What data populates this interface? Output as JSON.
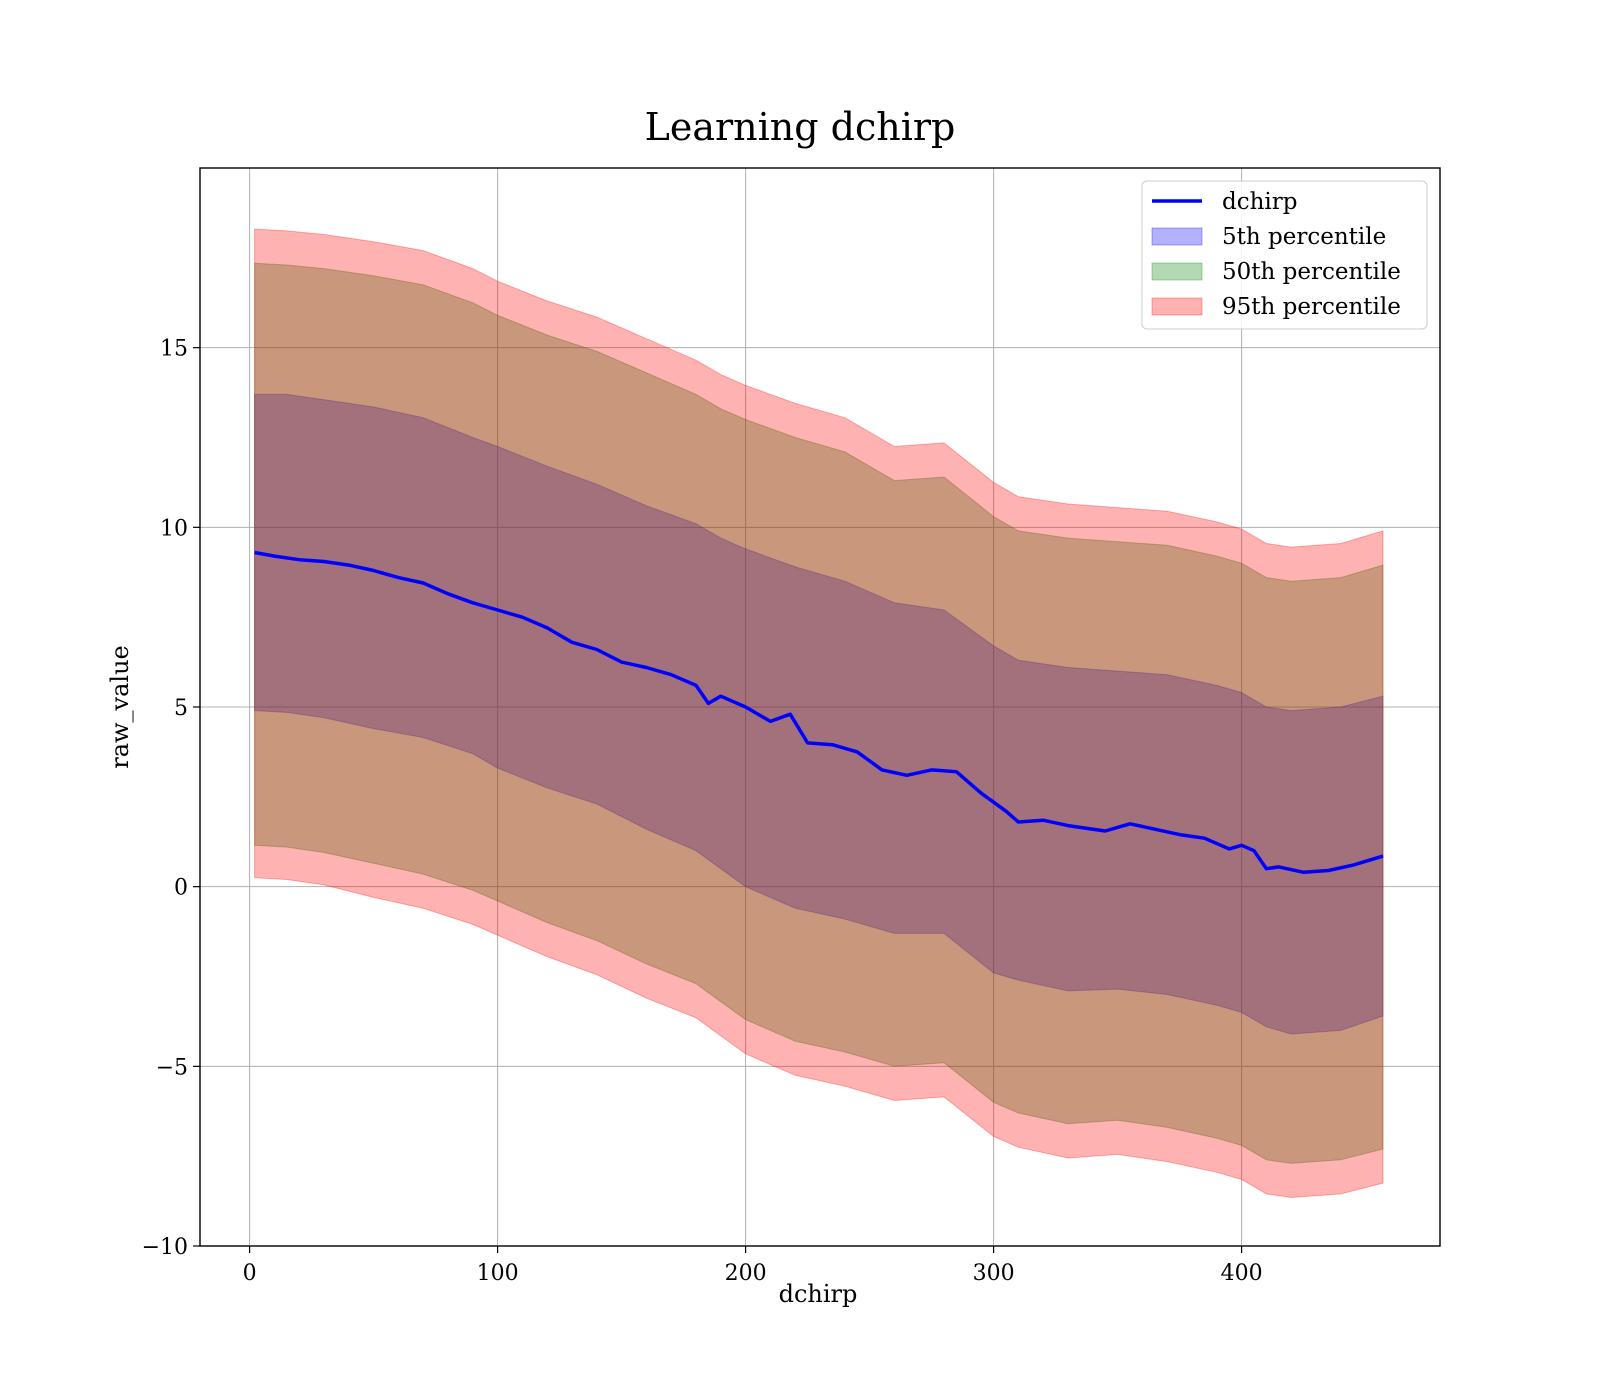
{
  "chart_data": {
    "type": "area",
    "title": "Learning dchirp",
    "xlabel": "dchirp",
    "ylabel": "raw_value",
    "xlim": [
      -20,
      480
    ],
    "ylim": [
      -10,
      20
    ],
    "x_ticks": [
      0,
      100,
      200,
      300,
      400
    ],
    "y_ticks": [
      -10,
      -5,
      0,
      5,
      10,
      15
    ],
    "y_tick_labels": [
      "−10",
      "−5",
      "0",
      "5",
      "10",
      "15"
    ],
    "grid": true,
    "legend_position": "top-right",
    "series": [
      {
        "name": "dchirp",
        "kind": "line",
        "color": "#0000ff",
        "x": [
          2,
          10,
          20,
          30,
          40,
          50,
          60,
          70,
          80,
          90,
          100,
          110,
          120,
          130,
          140,
          150,
          160,
          170,
          180,
          185,
          190,
          200,
          210,
          218,
          225,
          235,
          245,
          255,
          265,
          275,
          285,
          295,
          305,
          310,
          320,
          330,
          345,
          355,
          365,
          375,
          385,
          395,
          400,
          405,
          410,
          415,
          425,
          435,
          445,
          457
        ],
        "y": [
          9.3,
          9.2,
          9.1,
          9.05,
          8.95,
          8.8,
          8.6,
          8.45,
          8.15,
          7.9,
          7.7,
          7.5,
          7.2,
          6.8,
          6.6,
          6.25,
          6.1,
          5.9,
          5.6,
          5.1,
          5.3,
          5.0,
          4.6,
          4.8,
          4.0,
          3.95,
          3.75,
          3.25,
          3.1,
          3.25,
          3.2,
          2.6,
          2.1,
          1.8,
          1.85,
          1.7,
          1.55,
          1.75,
          1.6,
          1.45,
          1.35,
          1.05,
          1.15,
          1.0,
          0.5,
          0.55,
          0.4,
          0.45,
          0.6,
          0.85
        ]
      },
      {
        "name": "5th percentile",
        "kind": "band",
        "color": "#0000ff",
        "x": [
          2,
          15,
          30,
          50,
          70,
          90,
          100,
          120,
          140,
          160,
          180,
          190,
          200,
          220,
          240,
          260,
          280,
          300,
          310,
          330,
          350,
          370,
          390,
          400,
          410,
          420,
          440,
          457
        ],
        "upper": [
          13.7,
          13.7,
          13.55,
          13.35,
          13.05,
          12.5,
          12.25,
          11.7,
          11.2,
          10.6,
          10.1,
          9.7,
          9.4,
          8.9,
          8.5,
          7.9,
          7.7,
          6.7,
          6.3,
          6.1,
          6.0,
          5.9,
          5.6,
          5.4,
          5.0,
          4.9,
          5.0,
          5.3
        ],
        "lower": [
          4.9,
          4.85,
          4.7,
          4.4,
          4.15,
          3.7,
          3.3,
          2.75,
          2.3,
          1.6,
          1.0,
          0.5,
          0.0,
          -0.6,
          -0.9,
          -1.3,
          -1.3,
          -2.4,
          -2.6,
          -2.9,
          -2.85,
          -3.0,
          -3.3,
          -3.5,
          -3.9,
          -4.1,
          -4.0,
          -3.6
        ]
      },
      {
        "name": "50th percentile",
        "kind": "band",
        "color": "#008000",
        "x": [
          2,
          15,
          30,
          50,
          70,
          90,
          100,
          120,
          140,
          160,
          180,
          190,
          200,
          220,
          240,
          260,
          280,
          300,
          310,
          330,
          350,
          370,
          390,
          400,
          410,
          420,
          440,
          457
        ],
        "upper": [
          17.35,
          17.3,
          17.2,
          17.0,
          16.75,
          16.25,
          15.9,
          15.35,
          14.9,
          14.3,
          13.7,
          13.3,
          13.0,
          12.5,
          12.1,
          11.3,
          11.4,
          10.3,
          9.9,
          9.7,
          9.6,
          9.5,
          9.2,
          9.0,
          8.6,
          8.5,
          8.6,
          8.95
        ],
        "lower": [
          1.15,
          1.1,
          0.95,
          0.65,
          0.35,
          -0.1,
          -0.4,
          -1.0,
          -1.5,
          -2.15,
          -2.7,
          -3.2,
          -3.7,
          -4.3,
          -4.6,
          -5.0,
          -4.9,
          -6.0,
          -6.3,
          -6.6,
          -6.5,
          -6.7,
          -7.0,
          -7.2,
          -7.6,
          -7.7,
          -7.6,
          -7.3
        ]
      },
      {
        "name": "95th percentile",
        "kind": "band",
        "color": "#ff0000",
        "x": [
          2,
          15,
          30,
          50,
          70,
          90,
          100,
          120,
          140,
          160,
          180,
          190,
          200,
          220,
          240,
          260,
          280,
          300,
          310,
          330,
          350,
          370,
          390,
          400,
          410,
          420,
          440,
          457
        ],
        "upper": [
          18.3,
          18.25,
          18.15,
          17.95,
          17.7,
          17.2,
          16.85,
          16.3,
          15.85,
          15.25,
          14.65,
          14.25,
          13.95,
          13.45,
          13.05,
          12.25,
          12.35,
          11.25,
          10.85,
          10.65,
          10.55,
          10.45,
          10.15,
          9.95,
          9.55,
          9.45,
          9.55,
          9.9
        ],
        "lower": [
          0.25,
          0.2,
          0.05,
          -0.3,
          -0.6,
          -1.05,
          -1.35,
          -1.95,
          -2.45,
          -3.1,
          -3.65,
          -4.15,
          -4.65,
          -5.25,
          -5.55,
          -5.95,
          -5.85,
          -6.95,
          -7.25,
          -7.55,
          -7.45,
          -7.65,
          -7.95,
          -8.15,
          -8.55,
          -8.65,
          -8.55,
          -8.25
        ]
      }
    ]
  }
}
